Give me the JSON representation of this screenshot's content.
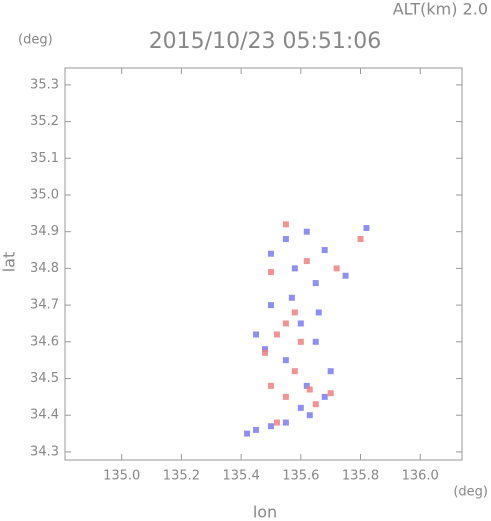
{
  "chart_data": {
    "type": "scatter",
    "title": "2015/10/23 05:51:06",
    "altitude_label": "ALT(km) 2.0",
    "y_unit": "(deg)",
    "x_unit": "(deg)",
    "x_label": "lon",
    "y_label": "lat",
    "xlim": [
      134.81,
      136.14
    ],
    "ylim": [
      34.278,
      35.346
    ],
    "xticks": [
      {
        "value": 135.0,
        "label": "135.0"
      },
      135.2,
      135.4,
      135.6,
      135.8,
      {
        "value": 136.0,
        "label": "136.0"
      }
    ],
    "yticks": [
      34.3,
      34.4,
      34.5,
      34.6,
      34.7,
      34.8,
      34.9,
      {
        "value": 35.0,
        "label": "35.0"
      },
      35.1,
      35.2,
      35.3
    ],
    "series": [
      {
        "color": "#7b7bf0",
        "x": [
          135.62,
          135.55,
          135.68,
          135.75,
          135.5,
          135.58,
          135.65,
          135.82,
          135.5,
          135.45,
          135.6,
          135.55,
          135.65,
          135.62,
          135.68,
          135.6,
          135.55,
          135.45,
          135.42,
          135.5,
          135.63,
          135.7,
          135.48,
          135.57,
          135.66
        ],
        "values": [
          34.9,
          34.88,
          34.85,
          34.78,
          34.84,
          34.8,
          34.76,
          34.91,
          34.7,
          34.62,
          34.65,
          34.55,
          34.6,
          34.48,
          34.45,
          34.42,
          34.38,
          34.36,
          34.35,
          34.37,
          34.4,
          34.52,
          34.58,
          34.72,
          34.68
        ]
      },
      {
        "color": "#f08080",
        "x": [
          135.55,
          135.8,
          135.62,
          135.72,
          135.5,
          135.55,
          135.6,
          135.52,
          135.48,
          135.58,
          135.63,
          135.55,
          135.5,
          135.7,
          135.52,
          135.65,
          135.58
        ],
        "values": [
          34.92,
          34.88,
          34.82,
          34.8,
          34.79,
          34.65,
          34.6,
          34.62,
          34.57,
          34.52,
          34.47,
          34.45,
          34.48,
          34.46,
          34.38,
          34.43,
          34.68
        ]
      }
    ]
  }
}
